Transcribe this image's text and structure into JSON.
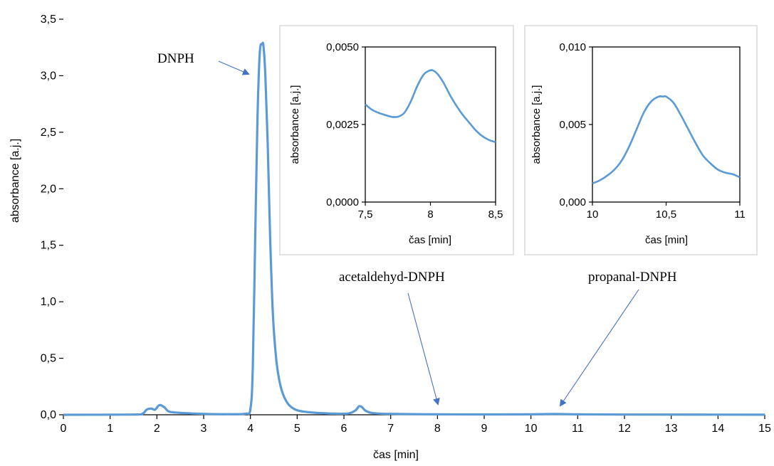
{
  "colors": {
    "line": "#5b9bd5",
    "arrow": "#4472c4",
    "axis": "#000000",
    "inset_border": "#d9d9d9"
  },
  "chart_data": [
    {
      "type": "line",
      "title": "",
      "xlabel": "čas [min]",
      "ylabel": "absorbance [a.j.]",
      "xlim": [
        0,
        15
      ],
      "ylim": [
        0,
        3.5
      ],
      "x_ticks": [
        "0",
        "1",
        "2",
        "3",
        "4",
        "5",
        "6",
        "7",
        "8",
        "9",
        "10",
        "11",
        "12",
        "13",
        "14",
        "15"
      ],
      "y_ticks": [
        "0,0",
        "0,5",
        "1,0",
        "1,5",
        "2,0",
        "2,5",
        "3,0",
        "3,5"
      ],
      "grid": false,
      "series": [
        {
          "x": [
            0,
            1.5,
            1.7,
            1.78,
            1.88,
            1.96,
            2.05,
            2.15,
            2.25,
            2.4,
            2.6,
            3.0,
            3.5,
            3.9,
            4.0,
            4.05,
            4.1,
            4.15,
            4.2,
            4.25,
            4.28,
            4.32,
            4.37,
            4.42,
            4.48,
            4.55,
            4.62,
            4.7,
            4.8,
            4.9,
            5.0,
            5.2,
            5.5,
            5.8,
            6.1,
            6.25,
            6.32,
            6.38,
            6.45,
            6.55,
            6.7,
            7.0,
            8.0,
            9.0,
            10.0,
            10.5,
            11.0,
            12.0,
            15.0
          ],
          "y": [
            0,
            0.002,
            0.012,
            0.045,
            0.055,
            0.045,
            0.085,
            0.07,
            0.03,
            0.02,
            0.015,
            0.008,
            0.005,
            0.01,
            0.05,
            0.4,
            1.5,
            2.6,
            3.2,
            3.28,
            3.26,
            3.0,
            2.4,
            1.6,
            0.9,
            0.5,
            0.3,
            0.18,
            0.1,
            0.06,
            0.04,
            0.025,
            0.015,
            0.01,
            0.012,
            0.04,
            0.075,
            0.07,
            0.04,
            0.02,
            0.012,
            0.008,
            0.004,
            0.003,
            0.004,
            0.007,
            0.004,
            0.002,
            0.001
          ]
        }
      ],
      "annotations": [
        {
          "text": "DNPH",
          "x": 4.2,
          "y": 3.05
        },
        {
          "text": "acetaldehyd-DNPH",
          "x": 8.0,
          "y": 0.08
        },
        {
          "text": "propanal-DNPH",
          "x": 10.5,
          "y": 0.06
        }
      ]
    },
    {
      "type": "line",
      "title": "",
      "xlabel": "čas [min]",
      "ylabel": "absorbance [a.j.]",
      "xlim": [
        7.5,
        8.5
      ],
      "ylim": [
        0,
        0.005
      ],
      "x_ticks": [
        "7,5",
        "8",
        "8,5"
      ],
      "y_ticks": [
        "0,0000",
        "0,0025",
        "0,0050"
      ],
      "grid": false,
      "series": [
        {
          "x": [
            7.5,
            7.55,
            7.6,
            7.65,
            7.7,
            7.75,
            7.8,
            7.85,
            7.9,
            7.95,
            8.0,
            8.03,
            8.06,
            8.1,
            8.15,
            8.2,
            8.25,
            8.3,
            8.35,
            8.4,
            8.45,
            8.5
          ],
          "y": [
            0.00315,
            0.00298,
            0.00288,
            0.00281,
            0.00275,
            0.00275,
            0.00288,
            0.00325,
            0.00375,
            0.00412,
            0.00425,
            0.00422,
            0.0041,
            0.00385,
            0.00345,
            0.0031,
            0.0028,
            0.00255,
            0.0023,
            0.00212,
            0.002,
            0.00193
          ]
        }
      ]
    },
    {
      "type": "line",
      "title": "",
      "xlabel": "čas [min]",
      "ylabel": "absorbance [a.j.]",
      "xlim": [
        10,
        11
      ],
      "ylim": [
        0,
        0.01
      ],
      "x_ticks": [
        "10",
        "10,5",
        "11"
      ],
      "y_ticks": [
        "0,000",
        "0,005",
        "0,010"
      ],
      "grid": false,
      "series": [
        {
          "x": [
            10,
            10.05,
            10.1,
            10.15,
            10.2,
            10.25,
            10.3,
            10.35,
            10.4,
            10.45,
            10.48,
            10.5,
            10.55,
            10.6,
            10.65,
            10.7,
            10.75,
            10.8,
            10.85,
            10.9,
            10.95,
            11.0
          ],
          "y": [
            0.0012,
            0.0014,
            0.0017,
            0.0021,
            0.0027,
            0.0036,
            0.0047,
            0.0058,
            0.0065,
            0.0068,
            0.0068,
            0.0068,
            0.0064,
            0.0056,
            0.0047,
            0.0038,
            0.003,
            0.0025,
            0.0021,
            0.0019,
            0.0018,
            0.0016
          ]
        }
      ]
    }
  ]
}
